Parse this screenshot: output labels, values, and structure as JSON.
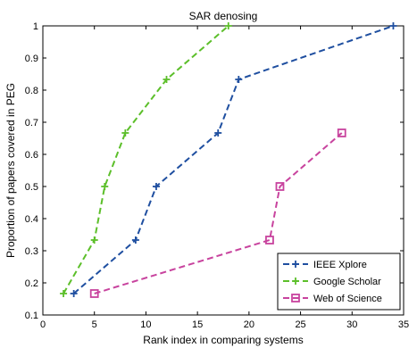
{
  "chart_data": {
    "type": "line",
    "title": "SAR denosing",
    "xlabel": "Rank index in comparing systems",
    "ylabel": "Proportion of papers covered in PEG",
    "xlim": [
      0,
      35
    ],
    "ylim": [
      0.1,
      1
    ],
    "xticks": [
      0,
      5,
      10,
      15,
      20,
      25,
      30,
      35
    ],
    "yticks": [
      0.1,
      0.2,
      0.3,
      0.4,
      0.5,
      0.6,
      0.7,
      0.8,
      0.9,
      1
    ],
    "grid": false,
    "legend_position": "bottom-right",
    "series": [
      {
        "name": "IEEE Xplore",
        "color": "#1f4fa0",
        "marker": "plus",
        "line_style": "dashed",
        "points": [
          {
            "x": 3,
            "y": 0.1667
          },
          {
            "x": 9,
            "y": 0.3333
          },
          {
            "x": 11,
            "y": 0.5
          },
          {
            "x": 17,
            "y": 0.6667
          },
          {
            "x": 19,
            "y": 0.8333
          },
          {
            "x": 34,
            "y": 1.0
          }
        ]
      },
      {
        "name": "Google Scholar",
        "color": "#5cbf2a",
        "marker": "plus",
        "line_style": "dashed",
        "points": [
          {
            "x": 2,
            "y": 0.1667
          },
          {
            "x": 5,
            "y": 0.3333
          },
          {
            "x": 6,
            "y": 0.5
          },
          {
            "x": 8,
            "y": 0.6667
          },
          {
            "x": 12,
            "y": 0.8333
          },
          {
            "x": 18,
            "y": 1.0
          }
        ]
      },
      {
        "name": "Web of Science",
        "color": "#c8439e",
        "marker": "square",
        "line_style": "dashed",
        "points": [
          {
            "x": 5,
            "y": 0.1667
          },
          {
            "x": 22,
            "y": 0.3333
          },
          {
            "x": 23,
            "y": 0.5
          },
          {
            "x": 29,
            "y": 0.6667
          }
        ]
      }
    ]
  }
}
